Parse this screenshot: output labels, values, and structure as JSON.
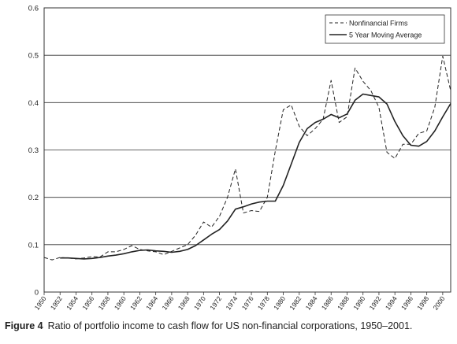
{
  "chart_data": {
    "type": "line",
    "title": "",
    "xlabel": "",
    "ylabel": "",
    "ylim": [
      0,
      0.6
    ],
    "y_ticks": [
      "0",
      "0.1",
      "0.2",
      "0.3",
      "0.4",
      "0.5",
      "0.6"
    ],
    "x_ticks": [
      "1950",
      "1952",
      "1954",
      "1956",
      "1958",
      "1960",
      "1962",
      "1964",
      "1966",
      "1968",
      "1970",
      "1972",
      "1974",
      "1976",
      "1978",
      "1980",
      "1982",
      "1984",
      "1986",
      "1988",
      "1990",
      "1992",
      "1994",
      "1996",
      "1998",
      "2000"
    ],
    "x_range": [
      1950,
      2001
    ],
    "grid": "horizontal",
    "legend_position": "top-right",
    "x": [
      1950,
      1951,
      1952,
      1953,
      1954,
      1955,
      1956,
      1957,
      1958,
      1959,
      1960,
      1961,
      1962,
      1963,
      1964,
      1965,
      1966,
      1967,
      1968,
      1969,
      1970,
      1971,
      1972,
      1973,
      1974,
      1975,
      1976,
      1977,
      1978,
      1979,
      1980,
      1981,
      1982,
      1983,
      1984,
      1985,
      1986,
      1987,
      1988,
      1989,
      1990,
      1991,
      1992,
      1993,
      1994,
      1995,
      1996,
      1997,
      1998,
      1999,
      2000,
      2001
    ],
    "series": [
      {
        "name": "Nonfinancial Firms",
        "style": "dashed",
        "color": "#222222",
        "values": [
          0.073,
          0.068,
          0.073,
          0.072,
          0.07,
          0.072,
          0.075,
          0.074,
          0.085,
          0.085,
          0.09,
          0.098,
          0.09,
          0.087,
          0.085,
          0.079,
          0.086,
          0.093,
          0.1,
          0.12,
          0.148,
          0.137,
          0.16,
          0.2,
          0.26,
          0.167,
          0.172,
          0.17,
          0.2,
          0.298,
          0.385,
          0.395,
          0.35,
          0.33,
          0.345,
          0.365,
          0.447,
          0.358,
          0.37,
          0.473,
          0.445,
          0.425,
          0.39,
          0.295,
          0.282,
          0.312,
          0.312,
          0.335,
          0.34,
          0.39,
          0.498,
          0.425
        ]
      },
      {
        "name": "5 Year Moving Average",
        "style": "solid",
        "color": "#222222",
        "values": [
          null,
          null,
          0.072,
          0.072,
          0.071,
          0.07,
          0.071,
          0.073,
          0.076,
          0.078,
          0.081,
          0.085,
          0.088,
          0.089,
          0.087,
          0.086,
          0.084,
          0.086,
          0.09,
          0.098,
          0.11,
          0.122,
          0.132,
          0.15,
          0.175,
          0.18,
          0.186,
          0.19,
          0.192,
          0.192,
          0.225,
          0.27,
          0.316,
          0.345,
          0.358,
          0.365,
          0.375,
          0.368,
          0.376,
          0.405,
          0.418,
          0.415,
          0.412,
          0.397,
          0.36,
          0.33,
          0.31,
          0.308,
          0.318,
          0.34,
          0.37,
          0.398
        ]
      }
    ]
  },
  "caption": {
    "label": "Figure 4",
    "text": "Ratio of portfolio income to cash flow for US non-financial corporations, 1950–2001."
  }
}
